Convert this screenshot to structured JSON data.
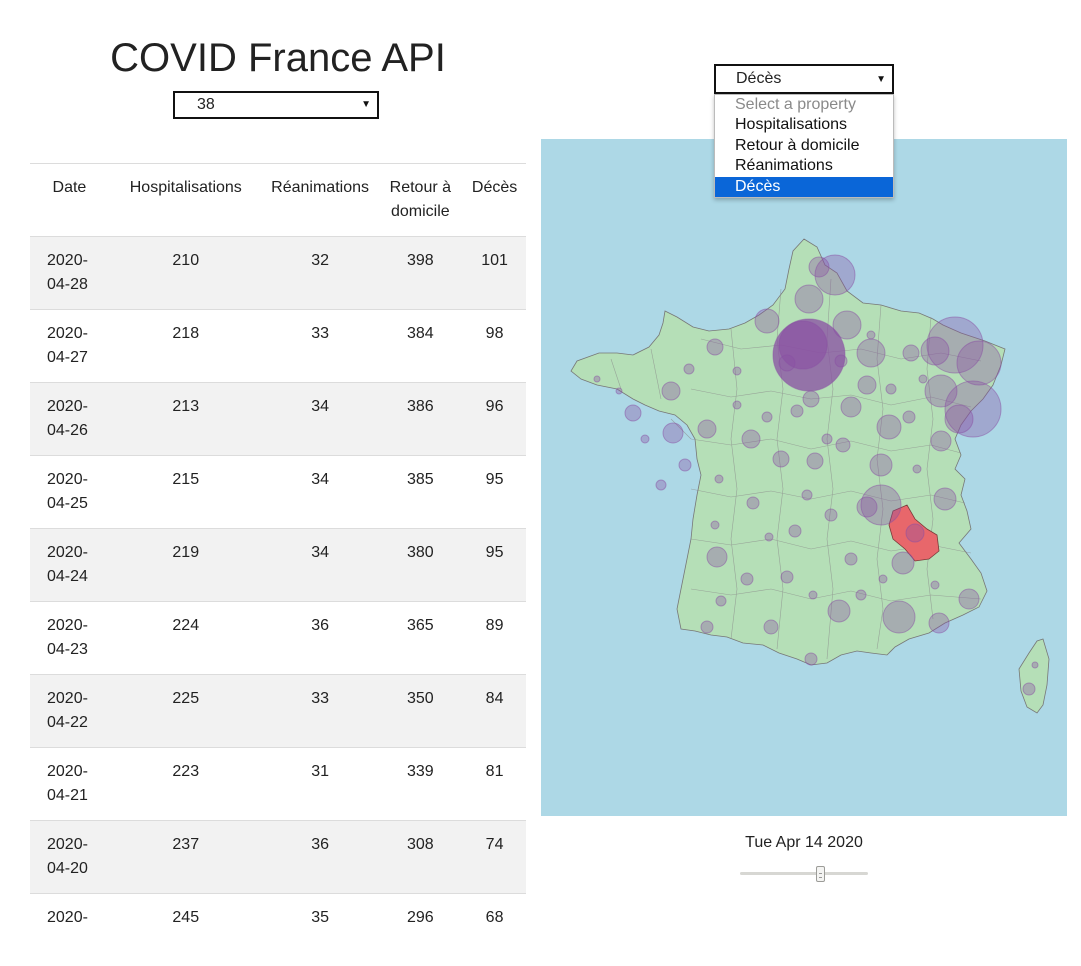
{
  "header": {
    "title": "COVID France API"
  },
  "department_select": {
    "value": "38"
  },
  "table": {
    "columns": [
      "Date",
      "Hospitalisations",
      "Réanimations",
      "Retour à domicile",
      "Décès"
    ],
    "rows": [
      {
        "date": "2020-04-28",
        "hosp": "210",
        "rea": "32",
        "ret": "398",
        "dec": "101"
      },
      {
        "date": "2020-04-27",
        "hosp": "218",
        "rea": "33",
        "ret": "384",
        "dec": "98"
      },
      {
        "date": "2020-04-26",
        "hosp": "213",
        "rea": "34",
        "ret": "386",
        "dec": "96"
      },
      {
        "date": "2020-04-25",
        "hosp": "215",
        "rea": "34",
        "ret": "385",
        "dec": "95"
      },
      {
        "date": "2020-04-24",
        "hosp": "219",
        "rea": "34",
        "ret": "380",
        "dec": "95"
      },
      {
        "date": "2020-04-23",
        "hosp": "224",
        "rea": "36",
        "ret": "365",
        "dec": "89"
      },
      {
        "date": "2020-04-22",
        "hosp": "225",
        "rea": "33",
        "ret": "350",
        "dec": "84"
      },
      {
        "date": "2020-04-21",
        "hosp": "223",
        "rea": "31",
        "ret": "339",
        "dec": "81"
      },
      {
        "date": "2020-04-20",
        "hosp": "237",
        "rea": "36",
        "ret": "308",
        "dec": "74"
      },
      {
        "date": "2020-",
        "hosp": "245",
        "rea": "35",
        "ret": "296",
        "dec": "68"
      }
    ]
  },
  "property_select": {
    "value": "Décès",
    "options": [
      {
        "label": "Select a property",
        "placeholder": true
      },
      {
        "label": "Hospitalisations"
      },
      {
        "label": "Retour à domicile"
      },
      {
        "label": "Réanimations"
      },
      {
        "label": "Décès",
        "selected": true
      }
    ]
  },
  "map": {
    "ocean_color": "#add8e6",
    "land_color": "#b5dfb7",
    "bubble_color": "#8a4fa3",
    "highlight_color": "#e8676b"
  },
  "timeline": {
    "date_label": "Tue Apr 14 2020",
    "position_fraction": 0.64
  },
  "icons": {
    "select_caret": "caret-down-icon",
    "slider_thumb": "slider-thumb-icon"
  }
}
